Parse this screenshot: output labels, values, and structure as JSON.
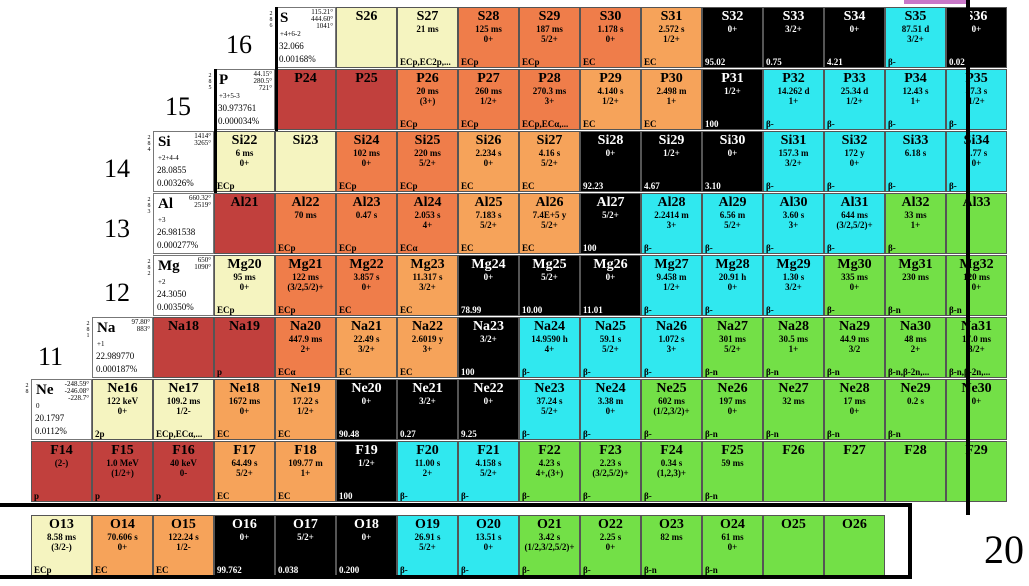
{
  "colors": {
    "red": "#c1403d",
    "orange_dark": "#ef7d4a",
    "orange": "#f6a35a",
    "cream": "#f5f4c0",
    "stable": "#000000",
    "cyan": "#30e8ef",
    "green": "#73e047"
  },
  "z_labels": {
    "z16": "16",
    "z15": "15",
    "z14": "14",
    "z13": "13",
    "z12": "12",
    "z11": "11",
    "n20": "20"
  },
  "elements": {
    "S": {
      "sym": "S",
      "shells": "2 8 6",
      "mp": "115.21°\n444.60°\n1041°",
      "ox": "+4+6-2",
      "mass": "32.066",
      "ab": "0.00168%"
    },
    "P": {
      "sym": "P",
      "shells": "2 8 5",
      "mp": "44.15°\n280.5°\n721°",
      "ox": "+3+5-3",
      "mass": "30.973761",
      "ab": "0.000034%"
    },
    "Si": {
      "sym": "Si",
      "shells": "2 8 4",
      "mp": "1414°\n3265°",
      "ox": "+2+4-4",
      "mass": "28.0855",
      "ab": "0.00326%"
    },
    "Al": {
      "sym": "Al",
      "shells": "2 8 3",
      "mp": "660.32°\n2519°",
      "ox": "+3",
      "mass": "26.981538",
      "ab": "0.000277%"
    },
    "Mg": {
      "sym": "Mg",
      "shells": "2 8 2",
      "mp": "650°\n1090°",
      "ox": "+2",
      "mass": "24.3050",
      "ab": "0.00350%"
    },
    "Na": {
      "sym": "Na",
      "shells": "2 8 1",
      "mp": "97.80°\n883°",
      "ox": "+1",
      "mass": "22.989770",
      "ab": "0.000187%"
    },
    "Ne": {
      "sym": "Ne",
      "shells": "2 8",
      "mp": "-248.59°\n-246.08°\n-228.7°",
      "ox": "0",
      "mass": "20.1797",
      "ab": "0.0112%"
    }
  },
  "rows": {
    "S": [
      {
        "s": "S26",
        "c": "cre",
        "a": "",
        "b": "",
        "d": ""
      },
      {
        "s": "S27",
        "c": "cre",
        "a": "21 ms",
        "b": "",
        "d": "ECp,EC2p,..."
      },
      {
        "s": "S28",
        "c": "or2",
        "a": "125 ms",
        "b": "0+",
        "d": "ECp"
      },
      {
        "s": "S29",
        "c": "or2",
        "a": "187 ms",
        "b": "5/2+",
        "d": "ECp"
      },
      {
        "s": "S30",
        "c": "or2",
        "a": "1.178 s",
        "b": "0+",
        "d": "EC"
      },
      {
        "s": "S31",
        "c": "or1",
        "a": "2.572 s",
        "b": "1/2+",
        "d": "EC"
      },
      {
        "s": "S32",
        "c": "blk",
        "a": "",
        "b": "0+",
        "d": "95.02"
      },
      {
        "s": "S33",
        "c": "blk",
        "a": "",
        "b": "3/2+",
        "d": "0.75"
      },
      {
        "s": "S34",
        "c": "blk",
        "a": "",
        "b": "0+",
        "d": "4.21"
      },
      {
        "s": "S35",
        "c": "cya",
        "a": "87.51 d",
        "b": "3/2+",
        "d": "β-"
      },
      {
        "s": "S36",
        "c": "blk",
        "a": "",
        "b": "0+",
        "d": "0.02"
      }
    ],
    "P": [
      {
        "s": "P24",
        "c": "red",
        "a": "",
        "b": "",
        "d": ""
      },
      {
        "s": "P25",
        "c": "red",
        "a": "",
        "b": "",
        "d": ""
      },
      {
        "s": "P26",
        "c": "or2",
        "a": "20 ms",
        "b": "(3+)",
        "d": "ECp"
      },
      {
        "s": "P27",
        "c": "or2",
        "a": "260 ms",
        "b": "1/2+",
        "d": "ECp"
      },
      {
        "s": "P28",
        "c": "or2",
        "a": "270.3 ms",
        "b": "3+",
        "d": "ECp,ECα,..."
      },
      {
        "s": "P29",
        "c": "or1",
        "a": "4.140 s",
        "b": "1/2+",
        "d": "EC"
      },
      {
        "s": "P30",
        "c": "or1",
        "a": "2.498 m",
        "b": "1+",
        "d": "EC"
      },
      {
        "s": "P31",
        "c": "blk",
        "a": "",
        "b": "1/2+",
        "d": "100"
      },
      {
        "s": "P32",
        "c": "cya",
        "a": "14.262 d",
        "b": "1+",
        "d": "β-"
      },
      {
        "s": "P33",
        "c": "cya",
        "a": "25.34 d",
        "b": "1/2+",
        "d": "β-"
      },
      {
        "s": "P34",
        "c": "cya",
        "a": "12.43 s",
        "b": "1+",
        "d": "β-"
      },
      {
        "s": "P35",
        "c": "cya",
        "a": "47.3 s",
        "b": "1/2+",
        "d": "β-"
      }
    ],
    "Si": [
      {
        "s": "Si22",
        "c": "cre",
        "a": "6 ms",
        "b": "0+",
        "d": "ECp"
      },
      {
        "s": "Si23",
        "c": "cre",
        "a": "",
        "b": "",
        "d": ""
      },
      {
        "s": "Si24",
        "c": "or2",
        "a": "102 ms",
        "b": "0+",
        "d": "ECp"
      },
      {
        "s": "Si25",
        "c": "or2",
        "a": "220 ms",
        "b": "5/2+",
        "d": "ECp"
      },
      {
        "s": "Si26",
        "c": "or1",
        "a": "2.234 s",
        "b": "0+",
        "d": "EC"
      },
      {
        "s": "Si27",
        "c": "or1",
        "a": "4.16 s",
        "b": "5/2+",
        "d": "EC"
      },
      {
        "s": "Si28",
        "c": "blk",
        "a": "",
        "b": "0+",
        "d": "92.23"
      },
      {
        "s": "Si29",
        "c": "blk",
        "a": "",
        "b": "1/2+",
        "d": "4.67"
      },
      {
        "s": "Si30",
        "c": "blk",
        "a": "",
        "b": "0+",
        "d": "3.10"
      },
      {
        "s": "Si31",
        "c": "cya",
        "a": "157.3 m",
        "b": "3/2+",
        "d": "β-"
      },
      {
        "s": "Si32",
        "c": "cya",
        "a": "172 y",
        "b": "0+",
        "d": "β-"
      },
      {
        "s": "Si33",
        "c": "cya",
        "a": "6.18 s",
        "b": "",
        "d": "β-"
      },
      {
        "s": "Si34",
        "c": "cya",
        "a": "2.77 s",
        "b": "0+",
        "d": "β-"
      }
    ],
    "Al": [
      {
        "s": "Al21",
        "c": "red",
        "a": "",
        "b": "",
        "d": ""
      },
      {
        "s": "Al22",
        "c": "or2",
        "a": "70 ms",
        "b": "",
        "d": "ECp"
      },
      {
        "s": "Al23",
        "c": "or2",
        "a": "0.47 s",
        "b": "",
        "d": "ECp"
      },
      {
        "s": "Al24",
        "c": "or2",
        "a": "2.053 s",
        "b": "4+",
        "d": "ECα"
      },
      {
        "s": "Al25",
        "c": "or1",
        "a": "7.183 s",
        "b": "5/2+",
        "d": "EC"
      },
      {
        "s": "Al26",
        "c": "or1",
        "a": "7.4E+5 y",
        "b": "5/2+",
        "d": "EC"
      },
      {
        "s": "Al27",
        "c": "blk",
        "a": "",
        "b": "5/2+",
        "d": "100"
      },
      {
        "s": "Al28",
        "c": "cya",
        "a": "2.2414 m",
        "b": "3+",
        "d": "β-"
      },
      {
        "s": "Al29",
        "c": "cya",
        "a": "6.56 m",
        "b": "5/2+",
        "d": "β-"
      },
      {
        "s": "Al30",
        "c": "cya",
        "a": "3.60 s",
        "b": "3+",
        "d": "β-"
      },
      {
        "s": "Al31",
        "c": "cya",
        "a": "644 ms",
        "b": "(3/2,5/2)+",
        "d": "β-"
      },
      {
        "s": "Al32",
        "c": "grn",
        "a": "33 ms",
        "b": "1+",
        "d": "β-"
      },
      {
        "s": "Al33",
        "c": "grn",
        "a": "",
        "b": "",
        "d": ""
      }
    ],
    "Mg": [
      {
        "s": "Mg20",
        "c": "cre",
        "a": "95 ms",
        "b": "0+",
        "d": "ECp"
      },
      {
        "s": "Mg21",
        "c": "or2",
        "a": "122 ms",
        "b": "(3/2,5/2)+",
        "d": "ECp"
      },
      {
        "s": "Mg22",
        "c": "or2",
        "a": "3.857 s",
        "b": "0+",
        "d": "EC"
      },
      {
        "s": "Mg23",
        "c": "or1",
        "a": "11.317 s",
        "b": "3/2+",
        "d": "EC"
      },
      {
        "s": "Mg24",
        "c": "blk",
        "a": "",
        "b": "0+",
        "d": "78.99"
      },
      {
        "s": "Mg25",
        "c": "blk",
        "a": "",
        "b": "5/2+",
        "d": "10.00"
      },
      {
        "s": "Mg26",
        "c": "blk",
        "a": "",
        "b": "0+",
        "d": "11.01"
      },
      {
        "s": "Mg27",
        "c": "cya",
        "a": "9.458 m",
        "b": "1/2+",
        "d": "β-"
      },
      {
        "s": "Mg28",
        "c": "cya",
        "a": "20.91 h",
        "b": "0+",
        "d": "β-"
      },
      {
        "s": "Mg29",
        "c": "cya",
        "a": "1.30 s",
        "b": "3/2+",
        "d": "β-"
      },
      {
        "s": "Mg30",
        "c": "grn",
        "a": "335 ms",
        "b": "0+",
        "d": "β-"
      },
      {
        "s": "Mg31",
        "c": "grn",
        "a": "230 ms",
        "b": "",
        "d": "β-n"
      },
      {
        "s": "Mg32",
        "c": "grn",
        "a": "120 ms",
        "b": "0+",
        "d": "β-n"
      }
    ],
    "Na": [
      {
        "s": "Na18",
        "c": "red",
        "a": "",
        "b": "",
        "d": ""
      },
      {
        "s": "Na19",
        "c": "red",
        "a": "",
        "b": "",
        "d": "p"
      },
      {
        "s": "Na20",
        "c": "or2",
        "a": "447.9 ms",
        "b": "2+",
        "d": "ECα"
      },
      {
        "s": "Na21",
        "c": "or1",
        "a": "22.49 s",
        "b": "3/2+",
        "d": "EC"
      },
      {
        "s": "Na22",
        "c": "or1",
        "a": "2.6019 y",
        "b": "3+",
        "d": "EC"
      },
      {
        "s": "Na23",
        "c": "blk",
        "a": "",
        "b": "3/2+",
        "d": "100"
      },
      {
        "s": "Na24",
        "c": "cya",
        "a": "14.9590 h",
        "b": "4+",
        "d": "β-"
      },
      {
        "s": "Na25",
        "c": "cya",
        "a": "59.1 s",
        "b": "5/2+",
        "d": "β-"
      },
      {
        "s": "Na26",
        "c": "cya",
        "a": "1.072 s",
        "b": "3+",
        "d": "β-"
      },
      {
        "s": "Na27",
        "c": "grn",
        "a": "301 ms",
        "b": "5/2+",
        "d": "β-n"
      },
      {
        "s": "Na28",
        "c": "grn",
        "a": "30.5 ms",
        "b": "1+",
        "d": "β-n"
      },
      {
        "s": "Na29",
        "c": "grn",
        "a": "44.9 ms",
        "b": "3/2",
        "d": "β-n"
      },
      {
        "s": "Na30",
        "c": "grn",
        "a": "48 ms",
        "b": "2+",
        "d": "β-n,β-2n,..."
      },
      {
        "s": "Na31",
        "c": "grn",
        "a": "17.0 ms",
        "b": "3/2+",
        "d": "β-n,β-2n,..."
      }
    ],
    "Ne": [
      {
        "s": "Ne16",
        "c": "cre",
        "a": "122 keV",
        "b": "0+",
        "d": "2p"
      },
      {
        "s": "Ne17",
        "c": "cre",
        "a": "109.2 ms",
        "b": "1/2-",
        "d": "ECp,ECα,..."
      },
      {
        "s": "Ne18",
        "c": "or1",
        "a": "1672 ms",
        "b": "0+",
        "d": "EC"
      },
      {
        "s": "Ne19",
        "c": "or1",
        "a": "17.22 s",
        "b": "1/2+",
        "d": "EC"
      },
      {
        "s": "Ne20",
        "c": "blk",
        "a": "",
        "b": "0+",
        "d": "90.48"
      },
      {
        "s": "Ne21",
        "c": "blk",
        "a": "",
        "b": "3/2+",
        "d": "0.27"
      },
      {
        "s": "Ne22",
        "c": "blk",
        "a": "",
        "b": "0+",
        "d": "9.25"
      },
      {
        "s": "Ne23",
        "c": "cya",
        "a": "37.24 s",
        "b": "5/2+",
        "d": "β-"
      },
      {
        "s": "Ne24",
        "c": "cya",
        "a": "3.38 m",
        "b": "0+",
        "d": "β-"
      },
      {
        "s": "Ne25",
        "c": "grn",
        "a": "602 ms",
        "b": "(1/2,3/2)+",
        "d": "β-"
      },
      {
        "s": "Ne26",
        "c": "grn",
        "a": "197 ms",
        "b": "0+",
        "d": "β-n"
      },
      {
        "s": "Ne27",
        "c": "grn",
        "a": "32 ms",
        "b": "",
        "d": "β-n"
      },
      {
        "s": "Ne28",
        "c": "grn",
        "a": "17 ms",
        "b": "0+",
        "d": "β-n"
      },
      {
        "s": "Ne29",
        "c": "grn",
        "a": "0.2 s",
        "b": "",
        "d": "β-n"
      },
      {
        "s": "Ne30",
        "c": "grn",
        "a": "",
        "b": "0+",
        "d": ""
      }
    ],
    "F": [
      {
        "s": "F14",
        "c": "red",
        "a": "",
        "b": "(2-)",
        "d": "p"
      },
      {
        "s": "F15",
        "c": "red",
        "a": "1.0 MeV",
        "b": "(1/2+)",
        "d": "p"
      },
      {
        "s": "F16",
        "c": "red",
        "a": "40 keV",
        "b": "0-",
        "d": "p"
      },
      {
        "s": "F17",
        "c": "or1",
        "a": "64.49 s",
        "b": "5/2+",
        "d": "EC"
      },
      {
        "s": "F18",
        "c": "or1",
        "a": "109.77 m",
        "b": "1+",
        "d": "EC"
      },
      {
        "s": "F19",
        "c": "blk",
        "a": "",
        "b": "1/2+",
        "d": "100"
      },
      {
        "s": "F20",
        "c": "cya",
        "a": "11.00 s",
        "b": "2+",
        "d": "β-"
      },
      {
        "s": "F21",
        "c": "cya",
        "a": "4.158 s",
        "b": "5/2+",
        "d": "β-"
      },
      {
        "s": "F22",
        "c": "grn",
        "a": "4.23 s",
        "b": "4+,(3+)",
        "d": "β-"
      },
      {
        "s": "F23",
        "c": "grn",
        "a": "2.23 s",
        "b": "(3/2,5/2)+",
        "d": "β-"
      },
      {
        "s": "F24",
        "c": "grn",
        "a": "0.34 s",
        "b": "(1,2,3)+",
        "d": "β-"
      },
      {
        "s": "F25",
        "c": "grn",
        "a": "59 ms",
        "b": "",
        "d": "β-n"
      },
      {
        "s": "F26",
        "c": "grn",
        "a": "",
        "b": "",
        "d": ""
      },
      {
        "s": "F27",
        "c": "grn",
        "a": "",
        "b": "",
        "d": ""
      },
      {
        "s": "F28",
        "c": "grn",
        "a": "",
        "b": "",
        "d": ""
      },
      {
        "s": "F29",
        "c": "grn",
        "a": "",
        "b": "",
        "d": ""
      }
    ],
    "O": [
      {
        "s": "O13",
        "c": "cre",
        "a": "8.58 ms",
        "b": "(3/2-)",
        "d": "ECp"
      },
      {
        "s": "O14",
        "c": "or1",
        "a": "70.606 s",
        "b": "0+",
        "d": "EC"
      },
      {
        "s": "O15",
        "c": "or1",
        "a": "122.24 s",
        "b": "1/2-",
        "d": "EC"
      },
      {
        "s": "O16",
        "c": "blk",
        "a": "",
        "b": "0+",
        "d": "99.762"
      },
      {
        "s": "O17",
        "c": "blk",
        "a": "",
        "b": "5/2+",
        "d": "0.038"
      },
      {
        "s": "O18",
        "c": "blk",
        "a": "",
        "b": "0+",
        "d": "0.200"
      },
      {
        "s": "O19",
        "c": "cya",
        "a": "26.91 s",
        "b": "5/2+",
        "d": "β-"
      },
      {
        "s": "O20",
        "c": "cya",
        "a": "13.51 s",
        "b": "0+",
        "d": "β-"
      },
      {
        "s": "O21",
        "c": "grn",
        "a": "3.42 s",
        "b": "(1/2,3/2,5/2)+",
        "d": "β-"
      },
      {
        "s": "O22",
        "c": "grn",
        "a": "2.25 s",
        "b": "0+",
        "d": "β-"
      },
      {
        "s": "O23",
        "c": "grn",
        "a": "82 ms",
        "b": "",
        "d": "β-n"
      },
      {
        "s": "O24",
        "c": "grn",
        "a": "61 ms",
        "b": "0+",
        "d": "β-n"
      },
      {
        "s": "O25",
        "c": "grn",
        "a": "",
        "b": "",
        "d": ""
      },
      {
        "s": "O26",
        "c": "grn",
        "a": "",
        "b": "",
        "d": ""
      }
    ]
  }
}
